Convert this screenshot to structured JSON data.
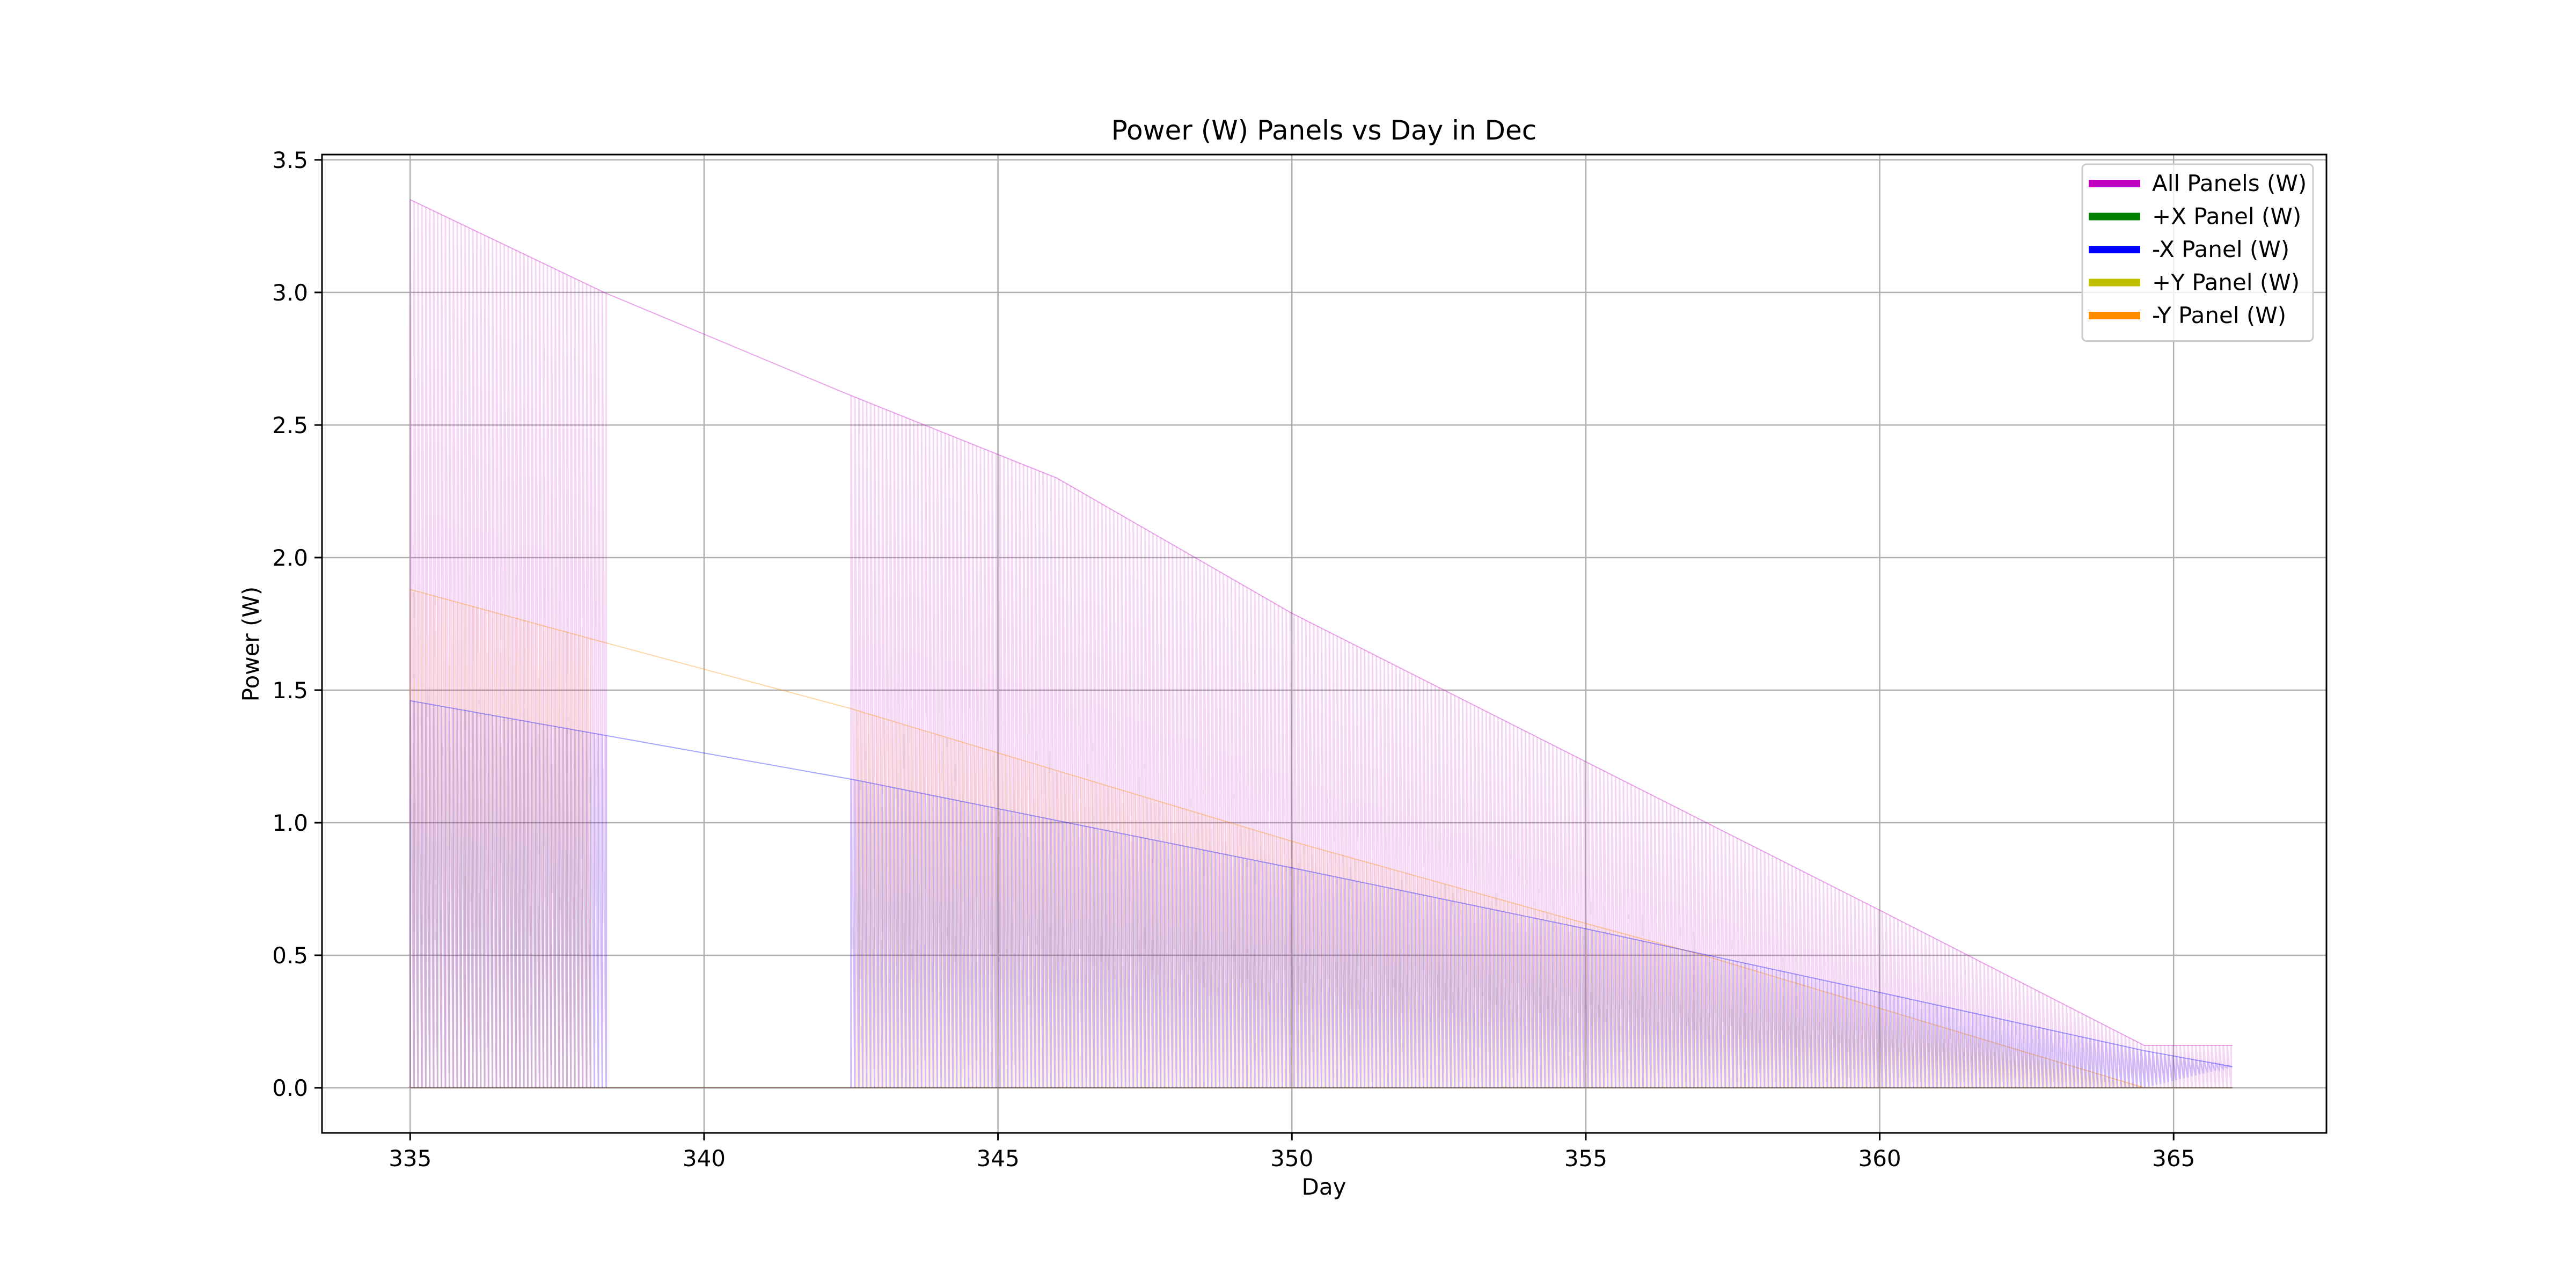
{
  "chart_data": {
    "type": "line",
    "title": "Power (W) Panels vs Day in Dec",
    "xlabel": "Day",
    "ylabel": "Power (W)",
    "xlim": [
      333.5,
      367.6
    ],
    "ylim": [
      -0.17,
      3.52
    ],
    "xticks": [
      335,
      340,
      345,
      350,
      355,
      360,
      365
    ],
    "yticks": [
      0.0,
      0.5,
      1.0,
      1.5,
      2.0,
      2.5,
      3.0,
      3.5
    ],
    "xtick_labels": [
      "335",
      "340",
      "345",
      "350",
      "355",
      "360",
      "365"
    ],
    "ytick_labels": [
      "0.0",
      "0.5",
      "1.0",
      "1.5",
      "2.0",
      "2.5",
      "3.0",
      "3.5"
    ],
    "grid": true,
    "legend_position": "top-right",
    "sample_step_days": 0.0667,
    "series": [
      {
        "name": "All Panels (W)",
        "color": "#bf00bf",
        "style": "oscillating",
        "envelope_x": [
          335.0,
          338.3,
          342.4,
          346.0,
          350.0,
          355.0,
          360.0,
          364.5,
          366.0
        ],
        "envelope_y": [
          3.35,
          3.0,
          2.62,
          2.3,
          1.79,
          1.23,
          0.67,
          0.16,
          0.16
        ],
        "active_ranges": [
          [
            335.0,
            338.35
          ],
          [
            342.5,
            366.0
          ]
        ],
        "floor": 0.0
      },
      {
        "name": "+X Panel (W)",
        "color": "#008000",
        "style": "oscillating",
        "envelope_x": [
          335.0,
          366.0
        ],
        "envelope_y": [
          0.0,
          0.0
        ],
        "active_ranges": [],
        "floor": 0.0
      },
      {
        "name": "-X Panel (W)",
        "color": "#0000ff",
        "style": "oscillating",
        "envelope_x": [
          335.0,
          338.3,
          342.6,
          350.0,
          355.0,
          360.0,
          364.5,
          366.0
        ],
        "envelope_y": [
          1.46,
          1.33,
          1.16,
          0.83,
          0.6,
          0.36,
          0.14,
          0.08
        ],
        "active_ranges": [
          [
            335.0,
            338.35
          ],
          [
            342.5,
            366.0
          ]
        ],
        "floor_x": [
          335.0,
          355.0,
          360.0,
          364.5,
          366.0
        ],
        "floor_y": [
          0.0,
          0.0,
          0.0,
          0.0,
          0.08
        ]
      },
      {
        "name": "+Y Panel (W)",
        "color": "#bfbf00",
        "style": "oscillating",
        "envelope_x": [
          335.0,
          366.0
        ],
        "envelope_y": [
          0.0,
          0.0
        ],
        "active_ranges": [],
        "floor": 0.0
      },
      {
        "name": "-Y Panel (W)",
        "color": "#ff8c00",
        "style": "oscillating",
        "envelope_x": [
          335.0,
          338.3,
          342.5,
          350.0,
          355.0,
          357.0,
          360.0,
          364.5
        ],
        "envelope_y": [
          1.88,
          1.68,
          1.43,
          0.93,
          0.62,
          0.5,
          0.3,
          0.0
        ],
        "active_ranges": [
          [
            335.0,
            338.1
          ],
          [
            342.6,
            364.5
          ]
        ],
        "floor": 0.0
      }
    ]
  }
}
